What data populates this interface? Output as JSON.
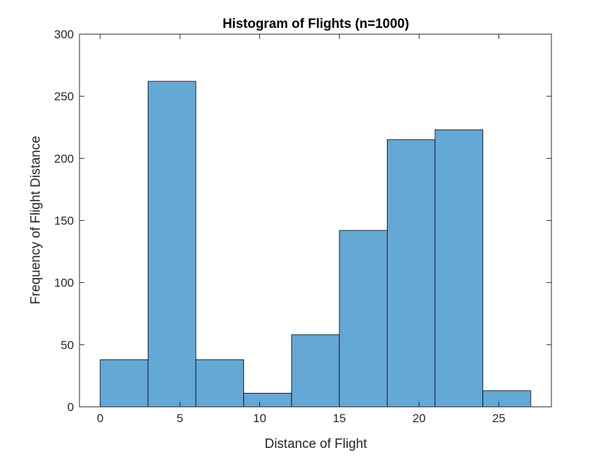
{
  "chart_data": {
    "type": "bar",
    "title": "Histogram of Flights (n=1000)",
    "xlabel": "Distance of Flight",
    "ylabel": "Frequency of Flight Distance",
    "xlim": [
      -1.3,
      28.3
    ],
    "ylim": [
      0,
      300
    ],
    "bin_edges": [
      0,
      3,
      6,
      9,
      12,
      15,
      18,
      21,
      24,
      27
    ],
    "values": [
      38,
      262,
      38,
      11,
      58,
      142,
      215,
      223,
      13
    ],
    "xticks": [
      0,
      5,
      10,
      15,
      20,
      25
    ],
    "yticks": [
      0,
      50,
      100,
      150,
      200,
      250,
      300
    ],
    "bar_color": "#64a8d6",
    "edge_color": "#000000",
    "grid": false
  }
}
